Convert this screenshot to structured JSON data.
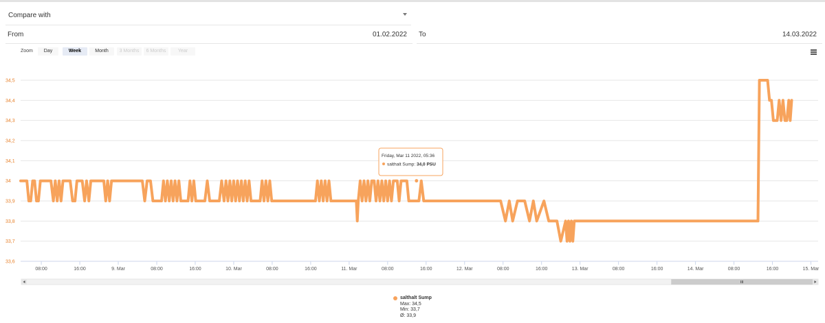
{
  "compare": {
    "label": "Compare with"
  },
  "from": {
    "label": "From",
    "value": "01.02.2022"
  },
  "to": {
    "label": "To",
    "value": "14.03.2022"
  },
  "zoom": {
    "label": "Zoom",
    "buttons": [
      {
        "label": "Day",
        "state": "normal"
      },
      {
        "label": "Week",
        "state": "active"
      },
      {
        "label": "Month",
        "state": "normal"
      },
      {
        "label": "3 Months",
        "state": "disabled"
      },
      {
        "label": "6 Months",
        "state": "disabled"
      },
      {
        "label": "Year",
        "state": "disabled"
      }
    ]
  },
  "menu_icon": "hamburger-menu-icon",
  "colors": {
    "series": "#f7a35c",
    "axis_labels": "#e8822c",
    "grid": "#e6e6e6"
  },
  "tooltip": {
    "header": "Friday, Mar 11 2022, 05:36",
    "series": "salthalt Sump",
    "value": "34,0 PSU"
  },
  "legend": {
    "name": "salthalt Sump",
    "max": "Max: 34,5",
    "min": "Min: 33,7",
    "avg": "Ø: 33,9"
  },
  "chart_data": {
    "type": "line",
    "ylim": [
      33.6,
      34.5
    ],
    "yticks": [
      {
        "v": 34.5,
        "label": "34,5"
      },
      {
        "v": 34.4,
        "label": "34,4"
      },
      {
        "v": 34.3,
        "label": "34,3"
      },
      {
        "v": 34.2,
        "label": "34,2"
      },
      {
        "v": 34.1,
        "label": "34,1"
      },
      {
        "v": 34.0,
        "label": "34"
      },
      {
        "v": 33.9,
        "label": "33,9"
      },
      {
        "v": 33.8,
        "label": "33,8"
      },
      {
        "v": 33.7,
        "label": "33,7"
      },
      {
        "v": 33.6,
        "label": "33,6"
      }
    ],
    "x_unit": "hours",
    "xlim": [
      3.7,
      169.5
    ],
    "xticks": [
      {
        "h": 8,
        "label": "08:00"
      },
      {
        "h": 16,
        "label": "16:00"
      },
      {
        "h": 24,
        "label": "9. Mar"
      },
      {
        "h": 32,
        "label": "08:00"
      },
      {
        "h": 40,
        "label": "16:00"
      },
      {
        "h": 48,
        "label": "10. Mar"
      },
      {
        "h": 56,
        "label": "08:00"
      },
      {
        "h": 64,
        "label": "16:00"
      },
      {
        "h": 72,
        "label": "11. Mar"
      },
      {
        "h": 80,
        "label": "08:00"
      },
      {
        "h": 88,
        "label": "16:00"
      },
      {
        "h": 96,
        "label": "12. Mar"
      },
      {
        "h": 104,
        "label": "08:00"
      },
      {
        "h": 112,
        "label": "16:00"
      },
      {
        "h": 120,
        "label": "13. Mar"
      },
      {
        "h": 128,
        "label": "08:00"
      },
      {
        "h": 136,
        "label": "16:00"
      },
      {
        "h": 144,
        "label": "14. Mar"
      },
      {
        "h": 152,
        "label": "08:00"
      },
      {
        "h": 160,
        "label": "16:00"
      },
      {
        "h": 168,
        "label": "15. Mar"
      }
    ],
    "series": [
      {
        "name": "salthalt Sump",
        "points": [
          [
            3.7,
            34.0
          ],
          [
            5.0,
            34.0
          ],
          [
            5.4,
            33.9
          ],
          [
            5.8,
            33.9
          ],
          [
            6.2,
            34.0
          ],
          [
            6.6,
            34.0
          ],
          [
            7.0,
            33.9
          ],
          [
            7.4,
            33.9
          ],
          [
            7.8,
            34.0
          ],
          [
            10.0,
            34.0
          ],
          [
            10.5,
            33.9
          ],
          [
            10.9,
            34.0
          ],
          [
            11.3,
            33.9
          ],
          [
            11.7,
            34.0
          ],
          [
            12.1,
            33.9
          ],
          [
            12.5,
            34.0
          ],
          [
            14.0,
            34.0
          ],
          [
            14.5,
            33.9
          ],
          [
            15.0,
            33.9
          ],
          [
            15.4,
            34.0
          ],
          [
            16.5,
            34.0
          ],
          [
            17.0,
            33.9
          ],
          [
            17.4,
            34.0
          ],
          [
            17.9,
            33.9
          ],
          [
            18.3,
            34.0
          ],
          [
            21.0,
            34.0
          ],
          [
            21.4,
            33.9
          ],
          [
            21.8,
            34.0
          ],
          [
            22.2,
            33.9
          ],
          [
            22.6,
            34.0
          ],
          [
            29.0,
            34.0
          ],
          [
            29.5,
            33.9
          ],
          [
            30.0,
            34.0
          ],
          [
            30.7,
            34.0
          ],
          [
            31.2,
            33.9
          ],
          [
            33.0,
            33.9
          ],
          [
            33.4,
            34.0
          ],
          [
            33.8,
            33.9
          ],
          [
            34.2,
            34.0
          ],
          [
            34.6,
            33.9
          ],
          [
            35.0,
            34.0
          ],
          [
            35.4,
            33.9
          ],
          [
            35.8,
            34.0
          ],
          [
            36.2,
            33.9
          ],
          [
            36.6,
            34.0
          ],
          [
            37.0,
            33.9
          ],
          [
            38.5,
            33.9
          ],
          [
            38.9,
            34.0
          ],
          [
            39.3,
            33.9
          ],
          [
            39.7,
            34.0
          ],
          [
            40.1,
            33.9
          ],
          [
            42.0,
            33.9
          ],
          [
            42.5,
            34.0
          ],
          [
            43.0,
            33.9
          ],
          [
            45.0,
            33.9
          ],
          [
            45.5,
            34.0
          ],
          [
            46.0,
            33.9
          ],
          [
            46.4,
            34.0
          ],
          [
            46.8,
            33.9
          ],
          [
            47.2,
            34.0
          ],
          [
            47.6,
            33.9
          ],
          [
            48.0,
            34.0
          ],
          [
            48.4,
            33.9
          ],
          [
            48.8,
            34.0
          ],
          [
            49.2,
            33.9
          ],
          [
            49.6,
            34.0
          ],
          [
            50.0,
            33.9
          ],
          [
            50.4,
            34.0
          ],
          [
            50.8,
            33.9
          ],
          [
            51.2,
            34.0
          ],
          [
            51.6,
            33.9
          ],
          [
            53.5,
            33.9
          ],
          [
            53.9,
            34.0
          ],
          [
            54.3,
            33.9
          ],
          [
            54.7,
            34.0
          ],
          [
            55.1,
            33.9
          ],
          [
            55.5,
            34.0
          ],
          [
            55.9,
            33.9
          ],
          [
            65.0,
            33.9
          ],
          [
            65.4,
            34.0
          ],
          [
            65.8,
            33.9
          ],
          [
            66.2,
            34.0
          ],
          [
            66.6,
            33.9
          ],
          [
            67.0,
            34.0
          ],
          [
            67.4,
            33.9
          ],
          [
            67.8,
            34.0
          ],
          [
            68.2,
            33.9
          ],
          [
            73.5,
            33.9
          ],
          [
            73.7,
            33.8
          ],
          [
            73.9,
            33.9
          ],
          [
            74.3,
            34.0
          ],
          [
            74.7,
            33.9
          ],
          [
            75.1,
            34.0
          ],
          [
            75.5,
            33.9
          ],
          [
            75.9,
            34.0
          ],
          [
            76.3,
            33.9
          ],
          [
            76.7,
            34.0
          ],
          [
            77.2,
            34.0
          ],
          [
            77.6,
            33.9
          ],
          [
            78.0,
            34.0
          ],
          [
            78.4,
            33.9
          ],
          [
            78.8,
            34.0
          ],
          [
            79.2,
            33.9
          ],
          [
            79.6,
            34.0
          ],
          [
            80.0,
            33.9
          ],
          [
            80.4,
            34.0
          ],
          [
            80.8,
            33.9
          ],
          [
            81.2,
            34.0
          ],
          [
            82.0,
            34.0
          ],
          [
            82.4,
            33.9
          ],
          [
            82.8,
            34.0
          ],
          [
            84.0,
            34.0
          ],
          [
            84.4,
            33.9
          ],
          [
            86.5,
            33.9
          ],
          [
            87.0,
            34.0
          ],
          [
            87.5,
            33.9
          ],
          [
            103.5,
            33.9
          ],
          [
            104.5,
            33.8
          ],
          [
            105.3,
            33.9
          ],
          [
            106.0,
            33.8
          ],
          [
            107.0,
            33.9
          ],
          [
            108.5,
            33.9
          ],
          [
            109.5,
            33.8
          ],
          [
            110.3,
            33.9
          ],
          [
            111.0,
            33.8
          ],
          [
            112.5,
            33.9
          ],
          [
            113.5,
            33.8
          ],
          [
            115.2,
            33.8
          ],
          [
            116.0,
            33.7
          ],
          [
            117.0,
            33.8
          ],
          [
            117.3,
            33.7
          ],
          [
            117.6,
            33.8
          ],
          [
            117.9,
            33.7
          ],
          [
            118.2,
            33.8
          ],
          [
            118.5,
            33.7
          ],
          [
            118.8,
            33.8
          ],
          [
            157.0,
            33.8
          ],
          [
            157.3,
            34.5
          ],
          [
            159.0,
            34.5
          ],
          [
            159.4,
            34.4
          ],
          [
            159.8,
            34.4
          ],
          [
            160.2,
            34.3
          ],
          [
            161.0,
            34.3
          ],
          [
            161.4,
            34.4
          ],
          [
            161.8,
            34.3
          ],
          [
            162.2,
            34.4
          ],
          [
            162.6,
            34.3
          ],
          [
            163.0,
            34.3
          ],
          [
            163.4,
            34.4
          ],
          [
            163.7,
            34.3
          ],
          [
            164.0,
            34.4
          ]
        ]
      }
    ],
    "tooltip_point": [
      86.0,
      34.0
    ],
    "navigator": {
      "range": [
        0.82,
        1.0
      ]
    }
  }
}
